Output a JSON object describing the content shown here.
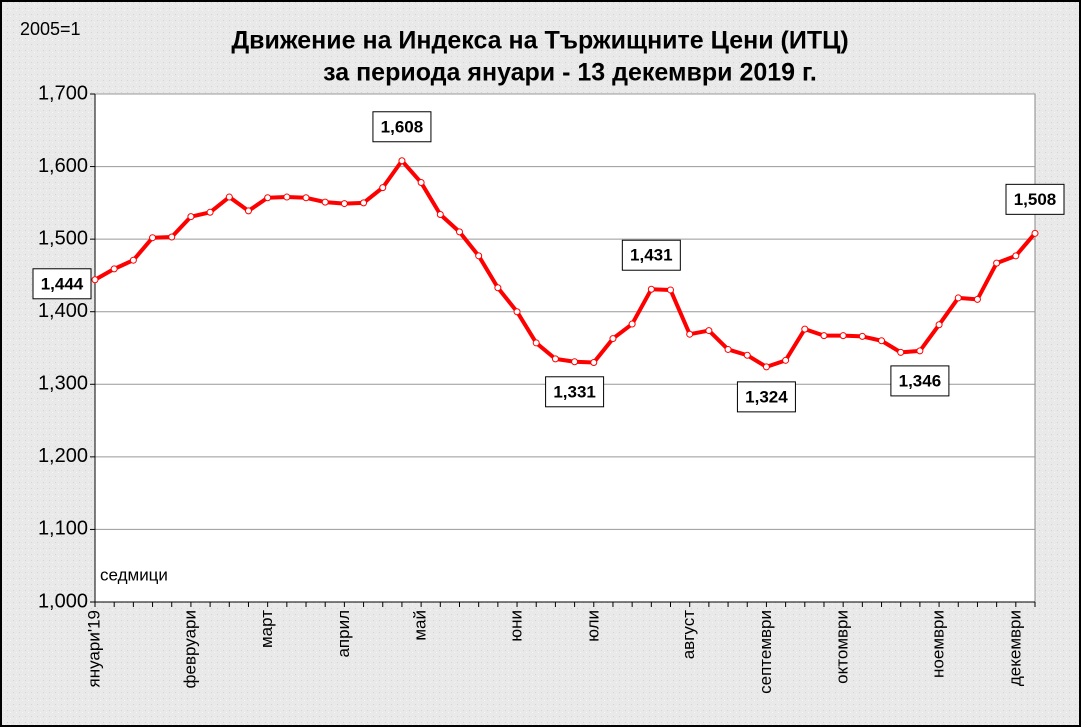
{
  "chart_data": {
    "type": "line",
    "title": "Движение на Индекса на Тържищните Цени (ИТЦ)",
    "subtitle": "за периода януари - 13 декември 2019 г.",
    "y_label": "2005=1",
    "x_label": "седмици",
    "categories": [
      "януари'19",
      null,
      null,
      null,
      null,
      "февруари",
      null,
      null,
      null,
      "март",
      null,
      null,
      null,
      "април",
      null,
      null,
      null,
      "май",
      null,
      null,
      null,
      null,
      "юни",
      null,
      null,
      null,
      "юли",
      null,
      null,
      null,
      null,
      "август",
      null,
      null,
      null,
      "септември",
      null,
      null,
      null,
      "октомври",
      null,
      null,
      null,
      null,
      "ноември",
      null,
      null,
      null,
      "декември",
      null
    ],
    "series": [
      {
        "name": "ИТЦ",
        "color": "#ff0000",
        "values": [
          1.444,
          1.459,
          1.471,
          1.502,
          1.503,
          1.531,
          1.537,
          1.558,
          1.539,
          1.557,
          1.558,
          1.557,
          1.551,
          1.549,
          1.55,
          1.571,
          1.608,
          1.578,
          1.534,
          1.51,
          1.477,
          1.433,
          1.4,
          1.357,
          1.335,
          1.331,
          1.33,
          1.363,
          1.383,
          1.431,
          1.43,
          1.369,
          1.374,
          1.348,
          1.34,
          1.324,
          1.333,
          1.376,
          1.367,
          1.367,
          1.366,
          1.36,
          1.344,
          1.346,
          1.382,
          1.419,
          1.417,
          1.467,
          1.477,
          1.508
        ],
        "value_labels": [
          "1,444",
          null,
          null,
          null,
          null,
          null,
          null,
          null,
          null,
          null,
          null,
          null,
          null,
          null,
          null,
          null,
          "1,608",
          null,
          null,
          null,
          null,
          null,
          null,
          null,
          null,
          "1,331",
          null,
          null,
          null,
          "1,431",
          null,
          null,
          null,
          null,
          null,
          "1,324",
          null,
          null,
          null,
          null,
          null,
          null,
          null,
          "1,346",
          null,
          null,
          null,
          null,
          null,
          "1,508"
        ]
      }
    ],
    "ylim": [
      1.0,
      1.7
    ],
    "yticks": [
      {
        "value": 1.0,
        "label": "1,000"
      },
      {
        "value": 1.1,
        "label": "1,100"
      },
      {
        "value": 1.2,
        "label": "1,200"
      },
      {
        "value": 1.3,
        "label": "1,300"
      },
      {
        "value": 1.4,
        "label": "1,400"
      },
      {
        "value": 1.5,
        "label": "1,500"
      },
      {
        "value": 1.6,
        "label": "1,600"
      },
      {
        "value": 1.7,
        "label": "1,700"
      }
    ],
    "grid": true
  }
}
